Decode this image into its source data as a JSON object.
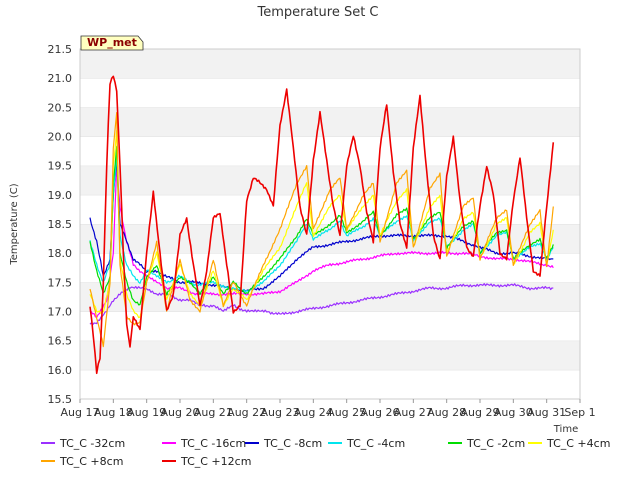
{
  "chart_data": {
    "type": "line",
    "title": "Temperature Set C",
    "xlabel": "Time",
    "ylabel": "Temperature (C)",
    "badge": "WP_met",
    "ylim": [
      15.5,
      21.5
    ],
    "yticks": [
      15.5,
      16.0,
      16.5,
      17.0,
      17.5,
      18.0,
      18.5,
      19.0,
      19.5,
      20.0,
      20.5,
      21.0,
      21.5
    ],
    "ytick_labels": [
      "15.5",
      "16.0",
      "16.5",
      "17.0",
      "17.5",
      "18.0",
      "18.5",
      "19.0",
      "19.5",
      "20.0",
      "20.5",
      "21.0",
      "21.5"
    ],
    "xlim": [
      0,
      15
    ],
    "xticks": [
      0,
      1,
      2,
      3,
      4,
      5,
      6,
      7,
      8,
      9,
      10,
      11,
      12,
      13,
      14,
      15
    ],
    "xtick_labels": [
      "Aug 17",
      "Aug 18",
      "Aug 19",
      "Aug 20",
      "Aug 21",
      "Aug 22",
      "Aug 23",
      "Aug 24",
      "Aug 25",
      "Aug 26",
      "Aug 27",
      "Aug 28",
      "Aug 29",
      "Aug 30",
      "Aug 31",
      "Sep 1"
    ],
    "grid": "horizontal bands",
    "legend_position": "bottom",
    "series": [
      {
        "name": "TC_C -32cm",
        "color": "#9b30ff",
        "x": [
          0.3,
          0.5,
          0.8,
          1.0,
          1.2,
          1.5,
          1.8,
          2.0,
          2.3,
          2.6,
          3.0,
          3.3,
          3.6,
          4.0,
          4.3,
          4.6,
          5.0,
          5.3,
          5.6,
          6.0,
          6.5,
          7.0,
          7.5,
          8.0,
          8.5,
          9.0,
          9.5,
          10.0,
          10.5,
          11.0,
          11.5,
          12.0,
          12.5,
          13.0,
          13.5,
          14.0,
          14.2
        ],
        "y": [
          16.8,
          16.8,
          17.0,
          17.2,
          17.3,
          17.4,
          17.4,
          17.4,
          17.3,
          17.3,
          17.2,
          17.2,
          17.1,
          17.1,
          17.0,
          17.1,
          17.0,
          17.0,
          17.0,
          16.95,
          17.0,
          17.05,
          17.1,
          17.15,
          17.2,
          17.25,
          17.3,
          17.35,
          17.4,
          17.4,
          17.45,
          17.45,
          17.45,
          17.45,
          17.4,
          17.4,
          17.4
        ]
      },
      {
        "name": "TC_C -16cm",
        "color": "#ff00ff",
        "x": [
          0.3,
          0.5,
          0.8,
          1.0,
          1.1,
          1.2,
          1.4,
          1.6,
          2.0,
          2.3,
          2.6,
          3.0,
          3.5,
          4.0,
          4.5,
          5.0,
          5.5,
          6.0,
          6.5,
          7.0,
          7.5,
          8.0,
          8.5,
          9.0,
          9.5,
          10.0,
          10.5,
          11.0,
          11.5,
          12.0,
          12.5,
          13.0,
          13.5,
          14.0,
          14.2
        ],
        "y": [
          17.0,
          16.9,
          17.2,
          18.0,
          19.5,
          18.8,
          18.2,
          17.8,
          17.6,
          17.5,
          17.4,
          17.4,
          17.3,
          17.3,
          17.3,
          17.3,
          17.3,
          17.35,
          17.5,
          17.7,
          17.8,
          17.85,
          17.9,
          17.95,
          18.0,
          18.0,
          18.0,
          18.0,
          18.0,
          17.95,
          17.9,
          17.9,
          17.85,
          17.8,
          17.75
        ]
      },
      {
        "name": "TC_C -8cm",
        "color": "#0000cd",
        "x": [
          0.3,
          0.5,
          0.7,
          0.9,
          1.0,
          1.1,
          1.2,
          1.4,
          1.6,
          2.0,
          2.3,
          2.6,
          3.0,
          3.5,
          4.0,
          4.5,
          5.0,
          5.5,
          6.0,
          6.5,
          7.0,
          7.5,
          8.0,
          8.5,
          9.0,
          9.5,
          10.0,
          10.5,
          11.0,
          11.5,
          12.0,
          12.5,
          13.0,
          13.5,
          14.0,
          14.2
        ],
        "y": [
          18.6,
          18.2,
          17.6,
          17.9,
          19.0,
          19.6,
          18.5,
          18.2,
          17.9,
          17.7,
          17.7,
          17.6,
          17.5,
          17.5,
          17.45,
          17.4,
          17.35,
          17.4,
          17.6,
          17.9,
          18.1,
          18.15,
          18.2,
          18.25,
          18.3,
          18.3,
          18.3,
          18.3,
          18.3,
          18.2,
          18.1,
          18.0,
          18.0,
          17.95,
          17.9,
          17.9
        ]
      },
      {
        "name": "TC_C -4cm",
        "color": "#00e5ee",
        "x": [
          0.3,
          0.5,
          0.7,
          0.9,
          1.0,
          1.1,
          1.2,
          1.4,
          1.6,
          1.8,
          2.0,
          2.3,
          2.6,
          3.0,
          3.5,
          4.0,
          4.5,
          5.0,
          5.5,
          6.0,
          6.5,
          6.8,
          7.0,
          7.5,
          7.8,
          8.0,
          8.5,
          8.8,
          9.0,
          9.5,
          9.8,
          10.0,
          10.5,
          10.8,
          11.0,
          11.5,
          11.8,
          12.0,
          12.5,
          12.8,
          13.0,
          13.5,
          13.8,
          14.0,
          14.2
        ],
        "y": [
          18.2,
          17.8,
          17.5,
          17.8,
          19.0,
          19.7,
          18.3,
          17.8,
          17.6,
          17.5,
          17.7,
          17.6,
          17.5,
          17.6,
          17.45,
          17.5,
          17.4,
          17.35,
          17.5,
          17.8,
          18.2,
          18.5,
          18.25,
          18.4,
          18.55,
          18.3,
          18.45,
          18.6,
          18.3,
          18.55,
          18.65,
          18.2,
          18.55,
          18.6,
          18.1,
          18.4,
          18.5,
          18.0,
          18.3,
          18.35,
          17.9,
          18.1,
          18.15,
          17.9,
          18.1
        ]
      },
      {
        "name": "TC_C -2cm",
        "color": "#00dd00",
        "x": [
          0.3,
          0.5,
          0.7,
          0.9,
          1.0,
          1.1,
          1.2,
          1.4,
          1.6,
          1.8,
          2.0,
          2.3,
          2.6,
          3.0,
          3.3,
          3.6,
          4.0,
          4.3,
          4.6,
          5.0,
          5.5,
          6.0,
          6.5,
          6.8,
          7.0,
          7.5,
          7.8,
          8.0,
          8.5,
          8.8,
          9.0,
          9.5,
          9.8,
          10.0,
          10.5,
          10.8,
          11.0,
          11.5,
          11.8,
          12.0,
          12.5,
          12.8,
          13.0,
          13.5,
          13.8,
          14.0,
          14.2
        ],
        "y": [
          18.2,
          17.7,
          17.3,
          17.6,
          19.2,
          19.8,
          18.0,
          17.5,
          17.2,
          17.1,
          17.6,
          17.8,
          17.3,
          17.6,
          17.5,
          17.3,
          17.6,
          17.3,
          17.5,
          17.3,
          17.6,
          17.9,
          18.3,
          18.6,
          18.3,
          18.5,
          18.65,
          18.35,
          18.55,
          18.7,
          18.3,
          18.65,
          18.75,
          18.25,
          18.6,
          18.7,
          18.1,
          18.45,
          18.55,
          18.0,
          18.35,
          18.4,
          17.9,
          18.15,
          18.25,
          17.9,
          18.15
        ]
      },
      {
        "name": "TC_C +4cm",
        "color": "#ffff00",
        "x": [
          0.3,
          0.5,
          0.7,
          0.9,
          1.0,
          1.1,
          1.2,
          1.4,
          1.6,
          1.8,
          2.0,
          2.3,
          2.6,
          3.0,
          3.3,
          3.6,
          4.0,
          4.3,
          4.6,
          5.0,
          5.5,
          6.0,
          6.5,
          6.8,
          7.0,
          7.5,
          7.8,
          8.0,
          8.5,
          8.8,
          9.0,
          9.5,
          9.8,
          10.0,
          10.5,
          10.8,
          11.0,
          11.5,
          11.8,
          12.0,
          12.5,
          12.8,
          13.0,
          13.5,
          13.8,
          14.0,
          14.2
        ],
        "y": [
          17.3,
          17.0,
          17.0,
          17.5,
          19.5,
          20.1,
          17.9,
          17.3,
          17.0,
          16.9,
          17.5,
          18.0,
          17.2,
          17.8,
          17.3,
          17.1,
          17.7,
          17.1,
          17.4,
          17.2,
          17.7,
          18.1,
          18.8,
          19.2,
          18.3,
          18.8,
          19.0,
          18.4,
          18.8,
          19.0,
          18.3,
          18.9,
          19.1,
          18.1,
          18.8,
          19.0,
          18.0,
          18.6,
          18.7,
          17.9,
          18.5,
          18.6,
          17.8,
          18.35,
          18.5,
          17.8,
          18.4
        ]
      },
      {
        "name": "TC_C +8cm",
        "color": "#ffa500",
        "x": [
          0.3,
          0.5,
          0.7,
          0.9,
          1.0,
          1.1,
          1.2,
          1.4,
          1.6,
          1.8,
          2.0,
          2.3,
          2.6,
          3.0,
          3.3,
          3.6,
          4.0,
          4.3,
          4.6,
          5.0,
          5.5,
          6.0,
          6.5,
          6.8,
          7.0,
          7.5,
          7.8,
          8.0,
          8.5,
          8.8,
          9.0,
          9.5,
          9.8,
          10.0,
          10.5,
          10.8,
          11.0,
          11.5,
          11.8,
          12.0,
          12.5,
          12.8,
          13.0,
          13.5,
          13.8,
          14.0,
          14.2
        ],
        "y": [
          17.4,
          16.9,
          16.4,
          17.5,
          19.8,
          20.4,
          17.8,
          16.9,
          16.8,
          16.8,
          17.5,
          18.2,
          17.0,
          17.9,
          17.2,
          17.0,
          17.9,
          17.1,
          17.5,
          17.1,
          17.8,
          18.4,
          19.2,
          19.5,
          18.4,
          19.1,
          19.3,
          18.4,
          19.0,
          19.2,
          18.2,
          19.2,
          19.4,
          18.1,
          19.1,
          19.35,
          17.95,
          18.8,
          18.95,
          17.9,
          18.6,
          18.75,
          17.8,
          18.5,
          18.75,
          17.75,
          18.8
        ]
      },
      {
        "name": "TC_C +12cm",
        "color": "#ee0000",
        "x": [
          0.3,
          0.4,
          0.5,
          0.6,
          0.7,
          0.8,
          0.9,
          1.0,
          1.1,
          1.2,
          1.3,
          1.4,
          1.5,
          1.6,
          1.8,
          2.0,
          2.2,
          2.4,
          2.6,
          2.8,
          3.0,
          3.2,
          3.4,
          3.6,
          3.8,
          4.0,
          4.2,
          4.4,
          4.6,
          4.8,
          5.0,
          5.2,
          5.4,
          5.6,
          5.8,
          6.0,
          6.2,
          6.4,
          6.6,
          6.8,
          7.0,
          7.2,
          7.4,
          7.6,
          7.8,
          8.0,
          8.2,
          8.4,
          8.6,
          8.8,
          9.0,
          9.2,
          9.4,
          9.6,
          9.8,
          10.0,
          10.2,
          10.4,
          10.6,
          10.8,
          11.0,
          11.2,
          11.4,
          11.6,
          11.8,
          12.0,
          12.2,
          12.4,
          12.6,
          12.8,
          13.0,
          13.2,
          13.4,
          13.6,
          13.8,
          14.0,
          14.2
        ],
        "y": [
          17.1,
          16.6,
          15.95,
          16.2,
          17.5,
          19.5,
          20.9,
          21.05,
          20.8,
          19.5,
          18.0,
          16.8,
          16.4,
          16.9,
          16.7,
          18.0,
          19.05,
          18.0,
          17.0,
          17.3,
          18.3,
          18.6,
          17.8,
          17.1,
          17.7,
          18.6,
          18.7,
          17.8,
          17.0,
          17.1,
          18.9,
          19.3,
          19.2,
          19.1,
          18.8,
          20.2,
          20.8,
          19.8,
          18.8,
          18.3,
          19.6,
          20.4,
          19.6,
          18.8,
          18.3,
          19.5,
          20.0,
          19.5,
          18.7,
          18.2,
          19.8,
          20.55,
          19.4,
          18.5,
          18.1,
          19.8,
          20.7,
          19.4,
          18.3,
          17.9,
          19.3,
          20.0,
          18.9,
          18.1,
          17.95,
          18.8,
          19.5,
          19.0,
          18.0,
          17.9,
          18.9,
          19.65,
          18.6,
          17.7,
          17.6,
          18.8,
          19.9
        ]
      }
    ]
  }
}
